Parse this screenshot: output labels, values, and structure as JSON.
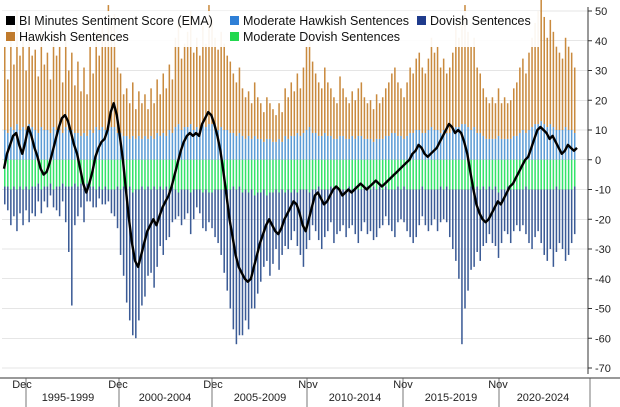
{
  "colors": {
    "hawkish": "#c98a3e",
    "moderate_hawkish": "#5b9bd5",
    "moderate_dovish": "#33e36a",
    "dovish": "#3b5b96",
    "ema": "#000000",
    "grid": "#cccccc"
  },
  "legend": [
    {
      "label": "BI Minutes Sentiment Score (EMA)",
      "color": "#000000"
    },
    {
      "label": "Moderate Hawkish Sentences",
      "color": "#2f7fd6"
    },
    {
      "label": "Dovish Sentences",
      "color": "#1f3b8c"
    },
    {
      "label": "Hawkish Sentences",
      "color": "#c07a2c"
    },
    {
      "label": "Moderate Dovish Sentences",
      "color": "#22d84f"
    }
  ],
  "chart_data": {
    "type": "bar",
    "title": "",
    "xlabel": "",
    "ylabel": "",
    "ylim": [
      -70,
      50
    ],
    "y_ticks": [
      50,
      40,
      30,
      20,
      10,
      0,
      -10,
      -20,
      -30,
      -40,
      -50,
      -60,
      -70
    ],
    "y_tick_labels": [
      "50",
      "40",
      "30",
      "20",
      "10",
      "0",
      "-10",
      "-20",
      "-30",
      "-40",
      "-50",
      "-60",
      "-70"
    ],
    "y_axis_position": "right",
    "grid": true,
    "x_month_labels": [
      "Dec",
      "Dec",
      "Dec",
      "Nov",
      "Nov",
      "Nov"
    ],
    "x_period_labels": [
      "1995-1999",
      "2000-2004",
      "2005-2009",
      "2010-2014",
      "2015-2019",
      "2020-2024"
    ],
    "series": [
      {
        "name": "Hawkish Sentences",
        "style": "stacked-bar-positive",
        "values": [
          28,
          18,
          35,
          22,
          38,
          25,
          30,
          20,
          32,
          24,
          27,
          19,
          34,
          22,
          26,
          18,
          31,
          25,
          28,
          17,
          30,
          20,
          26,
          16,
          24,
          15,
          22,
          14,
          28,
          20,
          32,
          25,
          36,
          30,
          40,
          34,
          38,
          22,
          20,
          14,
          16,
          12,
          18,
          10,
          15,
          12,
          14,
          10,
          16,
          12,
          18,
          14,
          20,
          16,
          22,
          18,
          30,
          35,
          24,
          28,
          32,
          38,
          26,
          30,
          25,
          33,
          28,
          40,
          35,
          30,
          27,
          32,
          29,
          25,
          24,
          20,
          18,
          22,
          16,
          14,
          15,
          12,
          18,
          14,
          12,
          10,
          14,
          12,
          11,
          9,
          12,
          10,
          16,
          14,
          18,
          15,
          20,
          16,
          22,
          28,
          36,
          24,
          20,
          18,
          16,
          22,
          18,
          16,
          14,
          12,
          20,
          16,
          14,
          12,
          15,
          13,
          16,
          18,
          14,
          12,
          13,
          11,
          15,
          12,
          14,
          16,
          18,
          20,
          22,
          18,
          16,
          14,
          18,
          22,
          20,
          24,
          26,
          22,
          20,
          24,
          30,
          26,
          28,
          22,
          24,
          20,
          22,
          26,
          34,
          30,
          36,
          40,
          32,
          28,
          30,
          22,
          20,
          16,
          14,
          12,
          14,
          12,
          16,
          12,
          14,
          12,
          13,
          16,
          18,
          22,
          24,
          20,
          26,
          30,
          34,
          38,
          42,
          36,
          30,
          35,
          32,
          28,
          26,
          24,
          30,
          28,
          26,
          22
        ]
      },
      {
        "name": "Moderate Hawkish Sentences",
        "style": "stacked-bar-positive",
        "values": [
          10,
          9,
          11,
          10,
          12,
          10,
          11,
          10,
          12,
          11,
          10,
          9,
          11,
          10,
          10,
          9,
          11,
          10,
          10,
          9,
          11,
          10,
          10,
          9,
          9,
          8,
          9,
          8,
          10,
          9,
          11,
          10,
          11,
          10,
          12,
          11,
          11,
          9,
          9,
          8,
          8,
          7,
          8,
          7,
          8,
          7,
          8,
          7,
          8,
          7,
          9,
          8,
          9,
          8,
          10,
          9,
          11,
          12,
          10,
          11,
          11,
          12,
          10,
          11,
          10,
          12,
          11,
          12,
          12,
          11,
          10,
          11,
          10,
          10,
          9,
          9,
          8,
          9,
          8,
          7,
          8,
          7,
          8,
          7,
          7,
          6,
          7,
          7,
          6,
          6,
          7,
          6,
          8,
          7,
          8,
          8,
          9,
          8,
          9,
          10,
          11,
          9,
          9,
          8,
          8,
          9,
          8,
          8,
          7,
          7,
          8,
          8,
          7,
          7,
          8,
          7,
          8,
          8,
          7,
          7,
          7,
          6,
          7,
          7,
          7,
          8,
          8,
          9,
          9,
          8,
          8,
          7,
          8,
          9,
          9,
          10,
          10,
          9,
          9,
          10,
          11,
          10,
          10,
          9,
          10,
          9,
          9,
          10,
          11,
          11,
          12,
          12,
          11,
          10,
          11,
          9,
          9,
          8,
          7,
          7,
          7,
          7,
          8,
          7,
          7,
          7,
          7,
          8,
          8,
          9,
          10,
          9,
          10,
          11,
          12,
          12,
          13,
          12,
          11,
          12,
          11,
          10,
          10,
          10,
          11,
          10,
          10,
          9
        ]
      },
      {
        "name": "Moderate Dovish Sentences",
        "style": "stacked-bar-negative",
        "values": [
          -9,
          -9,
          -10,
          -9,
          -10,
          -9,
          -10,
          -9,
          -10,
          -9,
          -9,
          -8,
          -10,
          -9,
          -9,
          -8,
          -10,
          -9,
          -9,
          -8,
          -9,
          -9,
          -9,
          -8,
          -9,
          -8,
          -9,
          -8,
          -9,
          -9,
          -10,
          -9,
          -10,
          -9,
          -10,
          -10,
          -10,
          -9,
          -10,
          -9,
          -10,
          -9,
          -11,
          -10,
          -10,
          -9,
          -10,
          -9,
          -10,
          -9,
          -10,
          -9,
          -10,
          -9,
          -10,
          -9,
          -10,
          -11,
          -10,
          -10,
          -10,
          -11,
          -10,
          -10,
          -10,
          -11,
          -10,
          -11,
          -11,
          -10,
          -10,
          -10,
          -10,
          -10,
          -10,
          -9,
          -10,
          -9,
          -11,
          -10,
          -11,
          -10,
          -12,
          -11,
          -11,
          -10,
          -12,
          -11,
          -11,
          -10,
          -11,
          -10,
          -11,
          -10,
          -11,
          -10,
          -11,
          -10,
          -10,
          -10,
          -11,
          -10,
          -10,
          -9,
          -10,
          -10,
          -10,
          -9,
          -10,
          -9,
          -10,
          -10,
          -10,
          -9,
          -10,
          -9,
          -10,
          -10,
          -9,
          -9,
          -10,
          -9,
          -10,
          -9,
          -10,
          -9,
          -10,
          -10,
          -10,
          -9,
          -10,
          -9,
          -10,
          -10,
          -10,
          -10,
          -10,
          -9,
          -10,
          -10,
          -10,
          -10,
          -10,
          -9,
          -10,
          -9,
          -10,
          -10,
          -10,
          -10,
          -10,
          -10,
          -10,
          -9,
          -10,
          -9,
          -10,
          -9,
          -10,
          -9,
          -10,
          -9,
          -11,
          -10,
          -10,
          -9,
          -10,
          -10,
          -10,
          -10,
          -10,
          -9,
          -10,
          -10,
          -10,
          -10,
          -10,
          -10,
          -10,
          -10,
          -10,
          -9,
          -10,
          -10,
          -10,
          -10,
          -10,
          -9
        ]
      },
      {
        "name": "Dovish Sentences",
        "style": "stacked-bar-negative",
        "values": [
          -6,
          -8,
          -12,
          -10,
          -14,
          -9,
          -12,
          -8,
          -11,
          -9,
          -10,
          -6,
          -8,
          -5,
          -7,
          -4,
          -6,
          -8,
          -10,
          -6,
          -12,
          -22,
          -40,
          -14,
          -10,
          -8,
          -12,
          -6,
          -5,
          -7,
          -6,
          -4,
          -5,
          -6,
          -4,
          -8,
          -9,
          -14,
          -22,
          -30,
          -38,
          -45,
          -48,
          -50,
          -44,
          -40,
          -36,
          -30,
          -28,
          -34,
          -26,
          -20,
          -22,
          -18,
          -16,
          -12,
          -10,
          -8,
          -12,
          -10,
          -8,
          -14,
          -10,
          -6,
          -8,
          -12,
          -14,
          -10,
          -12,
          -16,
          -18,
          -22,
          -28,
          -34,
          -40,
          -48,
          -52,
          -50,
          -48,
          -44,
          -46,
          -40,
          -38,
          -34,
          -30,
          -26,
          -22,
          -28,
          -24,
          -20,
          -26,
          -22,
          -18,
          -20,
          -16,
          -14,
          -18,
          -22,
          -26,
          -20,
          -16,
          -12,
          -14,
          -18,
          -20,
          -16,
          -14,
          -12,
          -18,
          -16,
          -14,
          -12,
          -16,
          -14,
          -12,
          -16,
          -18,
          -14,
          -12,
          -16,
          -14,
          -18,
          -16,
          -14,
          -12,
          -10,
          -12,
          -14,
          -16,
          -12,
          -10,
          -12,
          -14,
          -16,
          -18,
          -16,
          -12,
          -10,
          -12,
          -14,
          -12,
          -10,
          -14,
          -12,
          -10,
          -12,
          -16,
          -20,
          -24,
          -30,
          -52,
          -40,
          -34,
          -28,
          -26,
          -22,
          -24,
          -20,
          -18,
          -16,
          -18,
          -20,
          -22,
          -18,
          -14,
          -16,
          -18,
          -14,
          -12,
          -14,
          -12,
          -16,
          -18,
          -20,
          -16,
          -14,
          -18,
          -22,
          -24,
          -20,
          -26,
          -22,
          -18,
          -20,
          -24,
          -22,
          -18,
          -16
        ]
      },
      {
        "name": "BI Minutes Sentiment Score (EMA)",
        "style": "line",
        "values": [
          -3,
          2,
          5,
          8,
          9,
          5,
          2,
          6,
          11,
          8,
          4,
          1,
          -3,
          -5,
          -4,
          -1,
          3,
          7,
          11,
          14,
          15,
          13,
          9,
          5,
          2,
          -3,
          -8,
          -11,
          -8,
          -4,
          1,
          4,
          6,
          7,
          10,
          16,
          19,
          15,
          8,
          0,
          -10,
          -20,
          -28,
          -34,
          -36,
          -32,
          -28,
          -24,
          -22,
          -20,
          -22,
          -19,
          -16,
          -14,
          -12,
          -9,
          -5,
          -1,
          3,
          6,
          8,
          9,
          8,
          9,
          8,
          12,
          14,
          16,
          15,
          12,
          8,
          3,
          -4,
          -12,
          -20,
          -26,
          -32,
          -36,
          -38,
          -40,
          -41,
          -40,
          -36,
          -32,
          -28,
          -25,
          -22,
          -20,
          -22,
          -24,
          -25,
          -23,
          -20,
          -18,
          -16,
          -14,
          -15,
          -18,
          -22,
          -24,
          -20,
          -16,
          -12,
          -11,
          -13,
          -15,
          -14,
          -12,
          -10,
          -9,
          -10,
          -12,
          -11,
          -10,
          -11,
          -10,
          -9,
          -8,
          -9,
          -10,
          -9,
          -8,
          -7,
          -8,
          -9,
          -8,
          -7,
          -6,
          -5,
          -4,
          -3,
          -2,
          -1,
          0,
          2,
          3,
          5,
          4,
          2,
          1,
          2,
          3,
          4,
          6,
          8,
          10,
          12,
          11,
          9,
          10,
          9,
          6,
          2,
          -4,
          -10,
          -15,
          -18,
          -20,
          -21,
          -20,
          -18,
          -16,
          -14,
          -15,
          -13,
          -11,
          -9,
          -8,
          -6,
          -4,
          -2,
          0,
          1,
          4,
          7,
          10,
          11,
          10,
          9,
          7,
          8,
          6,
          4,
          2,
          3,
          5,
          4,
          3,
          4
        ]
      }
    ]
  }
}
